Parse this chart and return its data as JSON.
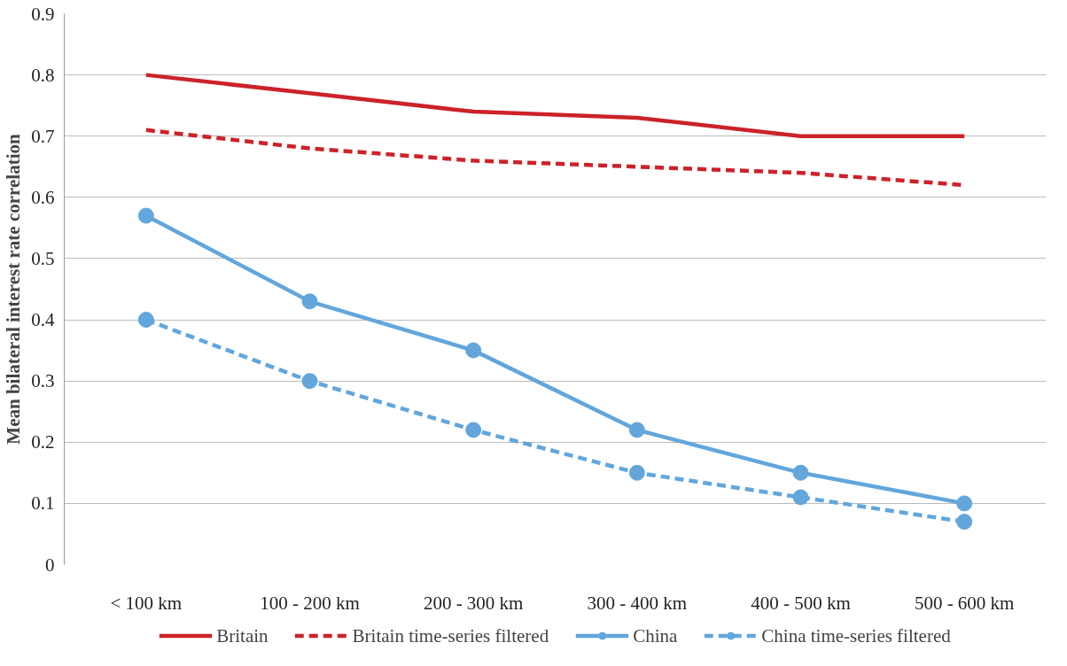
{
  "chart_data": {
    "type": "line",
    "ylabel": "Mean bilateral interest rate correlation",
    "categories": [
      "< 100 km",
      "100 - 200 km",
      "200 - 300 km",
      "300 - 400 km",
      "400 - 500 km",
      "500 - 600 km"
    ],
    "series": [
      {
        "name": "Britain",
        "color": "#cc2229",
        "marker": "none",
        "line_style": "solid",
        "values": [
          0.8,
          0.77,
          0.74,
          0.73,
          0.7,
          0.7
        ]
      },
      {
        "name": "Britain time-series filtered",
        "color": "#cc2229",
        "marker": "none",
        "line_style": "dashed",
        "values": [
          0.71,
          0.68,
          0.66,
          0.65,
          0.64,
          0.62
        ]
      },
      {
        "name": "China",
        "color": "#62a6dc",
        "marker": "circle",
        "line_style": "solid",
        "values": [
          0.57,
          0.43,
          0.35,
          0.22,
          0.15,
          0.1
        ]
      },
      {
        "name": "China time-series filtered",
        "color": "#62a6dc",
        "marker": "circle",
        "line_style": "dashed",
        "values": [
          0.4,
          0.3,
          0.22,
          0.15,
          0.11,
          0.07
        ]
      }
    ],
    "ylim": [
      0,
      0.9
    ],
    "yticks": [
      0,
      0.1,
      0.2,
      0.3,
      0.4,
      0.5,
      0.6,
      0.7,
      0.8,
      0.9
    ],
    "grid": "y",
    "legend": "bottom"
  }
}
